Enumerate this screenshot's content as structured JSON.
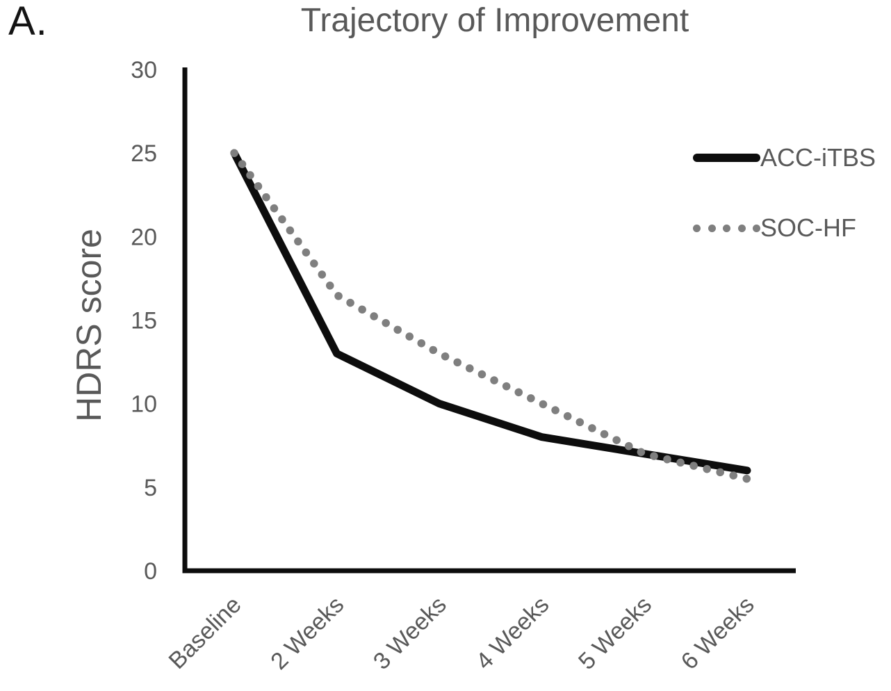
{
  "panel_label": "A.",
  "colors": {
    "axis": "#0d0d0d",
    "tick_text": "#595959",
    "title_text": "#595959",
    "solid_series": "#0d0d0d",
    "dotted_series": "#7f7f7f"
  },
  "chart_data": {
    "type": "line",
    "title": "Trajectory of Improvement",
    "xlabel": "",
    "ylabel": "HDRS score",
    "categories": [
      "Baseline",
      "2 Weeks",
      "3 Weeks",
      "4 Weeks",
      "5 Weeks",
      "6 Weeks"
    ],
    "series": [
      {
        "name": "ACC-iTBS",
        "style": "solid",
        "color": "#0d0d0d",
        "values": [
          25,
          13,
          10,
          8,
          7,
          6
        ]
      },
      {
        "name": "SOC-HF",
        "style": "dotted",
        "color": "#7f7f7f",
        "values": [
          25,
          16.5,
          13,
          10,
          7,
          5.5
        ]
      }
    ],
    "ylim": [
      0,
      30
    ],
    "yticks": [
      0,
      5,
      10,
      15,
      20,
      25,
      30
    ],
    "grid": false,
    "legend_position": "right"
  }
}
